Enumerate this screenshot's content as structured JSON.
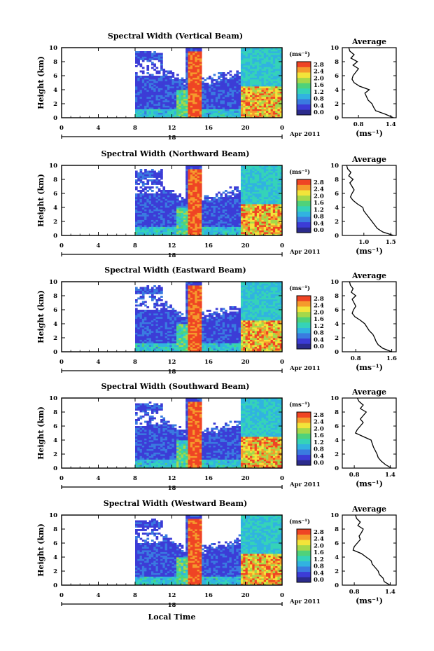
{
  "figure": {
    "shared": {
      "ylabel": "Height (km)",
      "colorbar_unit": "(ms⁻¹)",
      "colorbar_ticks": [
        "2.8",
        "2.4",
        "2.0",
        "1.6",
        "1.2",
        "0.8",
        "0.4",
        "0.0"
      ],
      "x_ticks": [
        "0",
        "4",
        "8",
        "12",
        "16",
        "20",
        "0"
      ],
      "y_ticks": [
        "0",
        "2",
        "4",
        "6",
        "8",
        "10"
      ],
      "date_marker": "18",
      "date_label": "Apr 2011",
      "avg_title": "Average",
      "avg_xlabel": "(ms⁻¹)",
      "xlabel": "Local Time",
      "colormap": [
        "#2b2b8c",
        "#3c3cd6",
        "#3a7be0",
        "#31b3e0",
        "#35d3b8",
        "#4fd27a",
        "#a5d84a",
        "#f3e43a",
        "#f59a2c",
        "#ef4424"
      ]
    }
  },
  "chart_data": [
    {
      "type": "heatmap",
      "title": "Spectral Width (Vertical Beam)",
      "xlabel": "",
      "ylabel": "Height (km)",
      "xlim": [
        0,
        24
      ],
      "ylim": [
        0,
        10
      ],
      "clim": [
        0.0,
        2.8
      ],
      "x_ticks": [
        "0",
        "4",
        "8",
        "12",
        "16",
        "20",
        "0"
      ],
      "y_ticks": [
        0,
        2,
        4,
        6,
        8,
        10
      ],
      "average_profile": {
        "title": "Average",
        "xlabel": "(ms⁻¹)",
        "x_ticks": [
          "0.8",
          "1.4"
        ],
        "xlim": [
          0.5,
          1.5
        ],
        "height": [
          0,
          0.5,
          1,
          1.5,
          2,
          2.5,
          3,
          3.5,
          4,
          4.5,
          5,
          5.5,
          6,
          6.5,
          7,
          7.5,
          8,
          8.5,
          9,
          9.5,
          10
        ],
        "value": [
          1.45,
          1.3,
          1.12,
          1.08,
          1.05,
          0.98,
          0.95,
          0.92,
          1.0,
          0.82,
          0.72,
          0.68,
          0.7,
          0.75,
          0.8,
          0.7,
          0.78,
          0.66,
          0.72,
          0.64,
          0.62
        ]
      }
    },
    {
      "type": "heatmap",
      "title": "Spectral Width (Northward Beam)",
      "xlabel": "",
      "ylabel": "Height (km)",
      "xlim": [
        0,
        24
      ],
      "ylim": [
        0,
        10
      ],
      "clim": [
        0.0,
        2.8
      ],
      "x_ticks": [
        "0",
        "4",
        "8",
        "12",
        "16",
        "20",
        "0"
      ],
      "y_ticks": [
        0,
        2,
        4,
        6,
        8,
        10
      ],
      "average_profile": {
        "title": "Average",
        "xlabel": "(ms⁻¹)",
        "x_ticks": [
          "1.0",
          "1.5"
        ],
        "xlim": [
          0.6,
          1.6
        ],
        "height": [
          0,
          0.5,
          1,
          1.5,
          2,
          2.5,
          3,
          3.5,
          4,
          4.5,
          5,
          5.5,
          6,
          6.5,
          7,
          7.5,
          8,
          8.5,
          9,
          9.5,
          10
        ],
        "value": [
          1.55,
          1.35,
          1.25,
          1.2,
          1.15,
          1.1,
          1.05,
          1.0,
          0.98,
          0.88,
          0.8,
          0.75,
          0.78,
          0.82,
          0.78,
          0.74,
          0.8,
          0.72,
          0.76,
          0.7,
          0.68
        ]
      }
    },
    {
      "type": "heatmap",
      "title": "Spectral Width (Eastward Beam)",
      "xlabel": "",
      "ylabel": "Height (km)",
      "xlim": [
        0,
        24
      ],
      "ylim": [
        0,
        10
      ],
      "clim": [
        0.0,
        2.8
      ],
      "x_ticks": [
        "0",
        "4",
        "8",
        "12",
        "16",
        "20",
        "0"
      ],
      "y_ticks": [
        0,
        2,
        4,
        6,
        8,
        10
      ],
      "average_profile": {
        "title": "Average",
        "xlabel": "(ms⁻¹)",
        "x_ticks": [
          "0.8",
          "1.6"
        ],
        "xlim": [
          0.5,
          1.7
        ],
        "height": [
          0,
          0.5,
          1,
          1.5,
          2,
          2.5,
          3,
          3.5,
          4,
          4.5,
          5,
          5.5,
          6,
          6.5,
          7,
          7.5,
          8,
          8.5,
          9,
          9.5,
          10
        ],
        "value": [
          1.6,
          1.4,
          1.3,
          1.25,
          1.22,
          1.18,
          1.1,
          1.05,
          1.0,
          0.9,
          0.78,
          0.72,
          0.75,
          0.8,
          0.76,
          0.72,
          0.8,
          0.7,
          0.74,
          0.68,
          0.66
        ]
      }
    },
    {
      "type": "heatmap",
      "title": "Spectral Width (Southward Beam)",
      "xlabel": "",
      "ylabel": "Height (km)",
      "xlim": [
        0,
        24
      ],
      "ylim": [
        0,
        10
      ],
      "clim": [
        0.0,
        2.8
      ],
      "x_ticks": [
        "0",
        "4",
        "8",
        "12",
        "16",
        "20",
        "0"
      ],
      "y_ticks": [
        0,
        2,
        4,
        6,
        8,
        10
      ],
      "average_profile": {
        "title": "Average",
        "xlabel": "(ms⁻¹)",
        "x_ticks": [
          "0.8",
          "1.4"
        ],
        "xlim": [
          0.6,
          1.5
        ],
        "height": [
          0,
          0.5,
          1,
          1.5,
          2,
          2.5,
          3,
          3.5,
          4,
          4.5,
          5,
          5.5,
          6,
          6.5,
          7,
          7.5,
          8,
          8.5,
          9,
          9.5,
          10
        ],
        "value": [
          1.42,
          1.32,
          1.25,
          1.2,
          1.18,
          1.15,
          1.12,
          1.1,
          1.08,
          0.95,
          0.82,
          0.85,
          0.9,
          0.95,
          0.9,
          0.95,
          1.0,
          0.9,
          0.95,
          0.88,
          0.85
        ]
      }
    },
    {
      "type": "heatmap",
      "title": "Spectral Width (Westward Beam)",
      "xlabel": "Local Time",
      "ylabel": "Height (km)",
      "xlim": [
        0,
        24
      ],
      "ylim": [
        0,
        10
      ],
      "clim": [
        0.0,
        2.8
      ],
      "x_ticks": [
        "0",
        "4",
        "8",
        "12",
        "16",
        "20",
        "0"
      ],
      "y_ticks": [
        0,
        2,
        4,
        6,
        8,
        10
      ],
      "average_profile": {
        "title": "Average",
        "xlabel": "(ms⁻¹)",
        "x_ticks": [
          "0.8",
          "1.4"
        ],
        "xlim": [
          0.6,
          1.5
        ],
        "height": [
          0,
          0.5,
          1,
          1.5,
          2,
          2.5,
          3,
          3.5,
          4,
          4.5,
          5,
          5.5,
          6,
          6.5,
          7,
          7.5,
          8,
          8.5,
          9,
          9.5,
          10
        ],
        "value": [
          1.4,
          1.3,
          1.28,
          1.22,
          1.2,
          1.15,
          1.1,
          1.08,
          1.0,
          0.92,
          0.78,
          0.8,
          0.85,
          0.9,
          0.88,
          0.92,
          0.95,
          0.86,
          0.9,
          0.84,
          0.82
        ]
      }
    }
  ]
}
